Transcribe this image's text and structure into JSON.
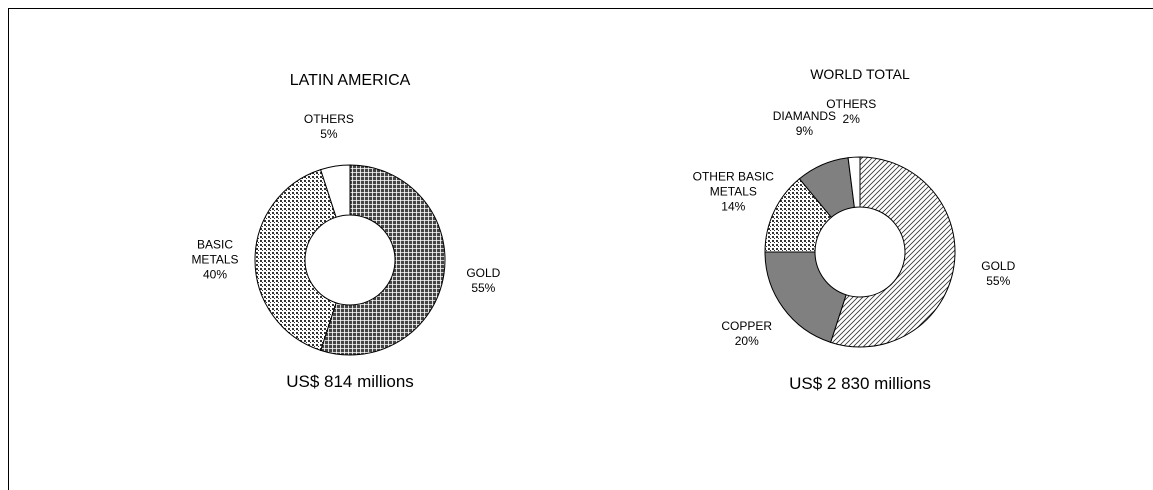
{
  "chart_data": [
    {
      "type": "donut",
      "title": "LATIN AMERICA",
      "caption": "US$ 814 millions",
      "categories": [
        "GOLD",
        "BASIC METALS",
        "OTHERS"
      ],
      "values": [
        55,
        40,
        5
      ],
      "value_labels": [
        "55%",
        "40%",
        "5%"
      ],
      "colors": [
        "#555555",
        "#ffffff",
        "#ffffff"
      ],
      "patterns": [
        "grid",
        "checker",
        "none"
      ]
    },
    {
      "type": "donut",
      "title": "WORLD TOTAL",
      "caption": "US$ 2 830 millions",
      "categories": [
        "GOLD",
        "COPPER",
        "OTHER BASIC METALS",
        "DIAMANDS",
        "OTHERS"
      ],
      "values": [
        55,
        20,
        14,
        9,
        2
      ],
      "value_labels": [
        "55%",
        "20%",
        "14%",
        "9%",
        "2%"
      ],
      "colors": [
        "#ffffff",
        "#808080",
        "#ffffff",
        "#808080",
        "#ffffff"
      ],
      "patterns": [
        "diagonal",
        "none",
        "checker",
        "none",
        "none"
      ]
    }
  ]
}
